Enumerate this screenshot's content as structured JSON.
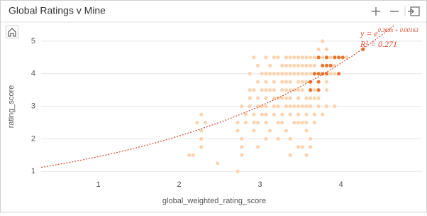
{
  "chart_data": {
    "type": "scatter",
    "title": "Global Ratings v Mine",
    "x_label": "global_weighted_rating_score",
    "y_label": "rating_score",
    "xlim": [
      0.32,
      5.03
    ],
    "ylim": [
      0.7,
      5.5
    ],
    "xticks": [
      1,
      2,
      3,
      4
    ],
    "yticks": [
      1,
      2,
      3,
      4,
      5
    ],
    "grid": true,
    "series": [
      {
        "color": "#fbd3b0",
        "x": [
          3.8,
          3.75,
          3.85,
          2.95,
          3.1,
          3.2,
          3.25,
          3.35,
          3.4,
          3.45,
          3.5,
          3.55,
          3.6,
          3.65,
          3.7,
          3.8,
          3.85,
          3.9,
          3.95,
          4.1,
          3.0,
          3.15,
          3.3,
          3.35,
          3.4,
          3.45,
          3.5,
          3.55,
          3.6,
          3.65,
          3.7,
          3.9,
          3.95,
          2.9,
          3.05,
          3.1,
          3.15,
          3.2,
          3.25,
          3.3,
          3.35,
          3.4,
          3.45,
          3.5,
          3.55,
          3.6,
          3.65,
          3.7,
          3.9,
          3.95,
          3.0,
          3.1,
          3.2,
          3.3,
          3.35,
          3.4,
          3.5,
          3.55,
          3.6,
          3.65,
          3.85,
          2.9,
          2.95,
          3.05,
          3.1,
          3.15,
          3.2,
          3.3,
          3.35,
          3.4,
          3.45,
          3.5,
          3.55,
          3.65,
          3.7,
          3.75,
          3.85,
          2.9,
          3.0,
          3.1,
          3.2,
          3.25,
          3.3,
          3.35,
          3.4,
          3.5,
          3.6,
          3.65,
          3.7,
          3.75,
          2.8,
          2.9,
          3.0,
          3.05,
          3.1,
          3.2,
          3.25,
          3.35,
          3.4,
          3.45,
          3.5,
          3.55,
          3.6,
          3.65,
          3.75,
          3.85,
          3.95,
          2.3,
          2.85,
          2.95,
          3.05,
          3.1,
          3.2,
          3.3,
          3.4,
          3.5,
          3.6,
          3.7,
          3.8,
          2.25,
          2.35,
          2.75,
          2.85,
          2.95,
          3.0,
          3.1,
          3.25,
          3.3,
          3.45,
          3.5,
          3.55,
          3.6,
          3.7,
          2.3,
          2.75,
          2.95,
          3.15,
          3.35,
          3.6,
          2.3,
          2.8,
          3.1,
          3.25,
          3.4,
          3.65,
          2.3,
          2.8,
          3.0,
          3.5,
          3.55,
          3.65,
          2.15,
          2.2,
          2.8,
          3.4,
          3.6,
          2.5,
          2.75
        ],
        "values": [
          5,
          4.75,
          4.75,
          4.5,
          4.5,
          4.5,
          4.5,
          4.5,
          4.5,
          4.5,
          4.5,
          4.5,
          4.5,
          4.5,
          4.5,
          4.5,
          4.5,
          4.5,
          4.5,
          4.5,
          4.25,
          4.25,
          4.25,
          4.25,
          4.25,
          4.25,
          4.25,
          4.25,
          4.25,
          4.25,
          4.25,
          4.25,
          4.25,
          4,
          4,
          4,
          4,
          4,
          4,
          4,
          4,
          4,
          4,
          4,
          4,
          4,
          4,
          4,
          4,
          4,
          3.75,
          3.75,
          3.75,
          3.75,
          3.75,
          3.75,
          3.75,
          3.75,
          3.75,
          3.75,
          3.75,
          3.5,
          3.5,
          3.5,
          3.5,
          3.5,
          3.5,
          3.5,
          3.5,
          3.5,
          3.5,
          3.5,
          3.5,
          3.5,
          3.5,
          3.5,
          3.5,
          3.25,
          3.25,
          3.25,
          3.25,
          3.25,
          3.25,
          3.25,
          3.25,
          3.25,
          3.25,
          3.25,
          3.25,
          3.25,
          3,
          3,
          3,
          3,
          3,
          3,
          3,
          3,
          3,
          3,
          3,
          3,
          3,
          3,
          3,
          3,
          3,
          2.75,
          2.75,
          2.75,
          2.75,
          2.75,
          2.75,
          2.75,
          2.75,
          2.75,
          2.75,
          2.75,
          2.75,
          2.5,
          2.5,
          2.5,
          2.5,
          2.5,
          2.5,
          2.5,
          2.5,
          2.5,
          2.5,
          2.5,
          2.5,
          2.5,
          2.5,
          2.25,
          2.25,
          2.25,
          2.25,
          2.25,
          2.25,
          2,
          2,
          2,
          2,
          2,
          2,
          1.75,
          1.75,
          1.75,
          1.75,
          1.75,
          1.75,
          1.5,
          1.5,
          1.5,
          1.5,
          1.5,
          1.25,
          1
        ]
      },
      {
        "color": "#e8772e",
        "x": [
          3.75,
          3.85,
          3.95,
          4.0,
          4.05,
          3.8,
          3.85,
          3.9,
          3.7,
          3.75,
          3.8,
          3.85,
          4.0,
          3.65,
          3.75,
          3.65,
          3.75,
          4.3
        ],
        "values": [
          4.5,
          4.5,
          4.5,
          4.5,
          4.5,
          4.25,
          4.25,
          4.25,
          4,
          4,
          4,
          4,
          4,
          3.75,
          3.75,
          3.5,
          3.5,
          4.75
        ]
      }
    ],
    "trendline": {
      "color": "#d9462b",
      "coefficient": 0.363,
      "intercept": 0.00163,
      "equation_label": "y = e",
      "exponent_label": "0.363x + 0.00163",
      "r2_label": "R² = 0.271"
    }
  }
}
